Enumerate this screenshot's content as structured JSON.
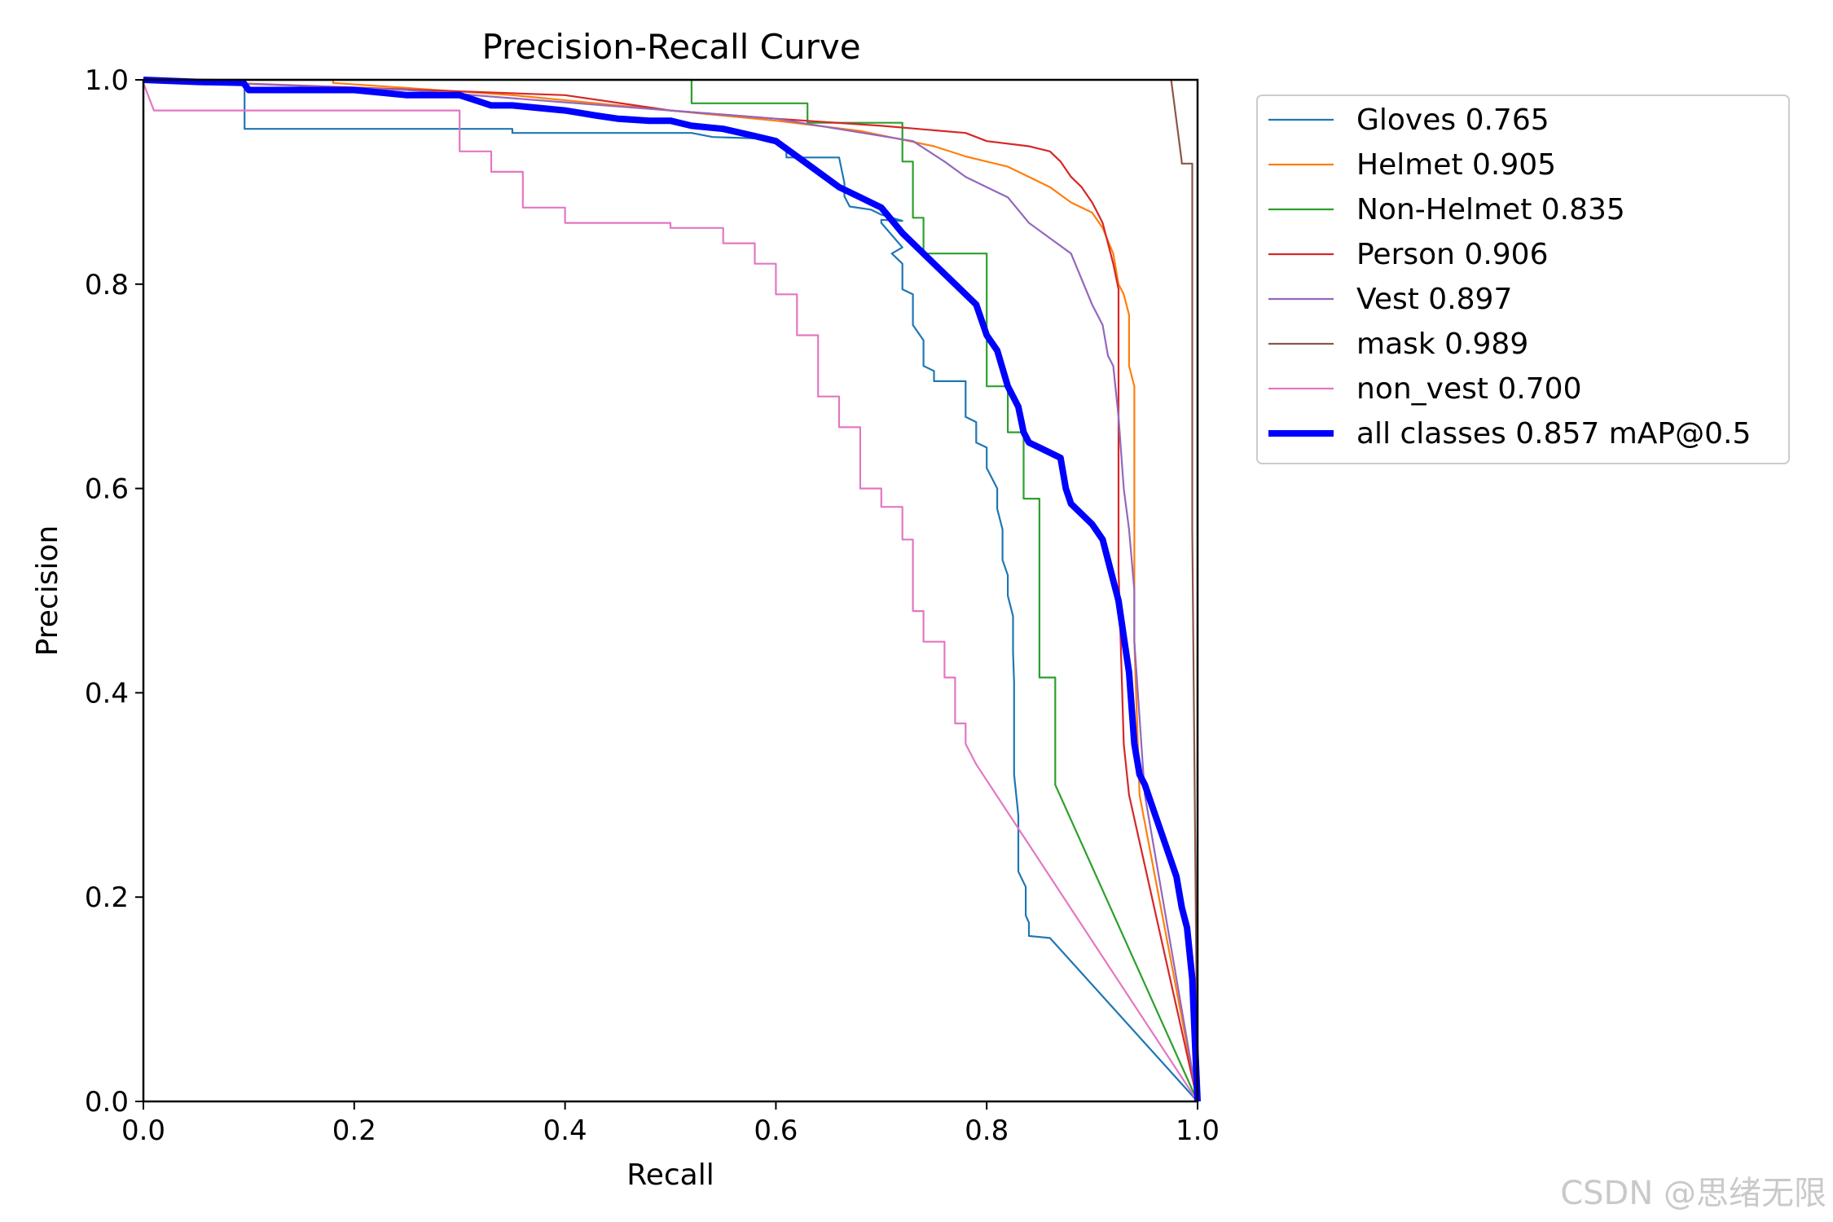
{
  "chart_data": {
    "type": "line",
    "title": "Precision-Recall Curve",
    "xlabel": "Recall",
    "ylabel": "Precision",
    "xlim": [
      0,
      1
    ],
    "ylim": [
      0,
      1
    ],
    "xticks": [
      "0.0",
      "0.2",
      "0.4",
      "0.6",
      "0.8",
      "1.0"
    ],
    "yticks": [
      "0.0",
      "0.2",
      "0.4",
      "0.6",
      "0.8",
      "1.0"
    ],
    "grid": false,
    "legend_position": "outside-right-top",
    "series": [
      {
        "name": "Gloves 0.765",
        "color": "#1f77b4",
        "x": [
          0,
          0.096,
          0.096,
          0.2,
          0.35,
          0.35,
          0.52,
          0.54,
          0.6,
          0.61,
          0.61,
          0.63,
          0.66,
          0.665,
          0.665,
          0.67,
          0.69,
          0.7,
          0.72,
          0.7,
          0.7,
          0.72,
          0.71,
          0.72,
          0.72,
          0.73,
          0.73,
          0.74,
          0.74,
          0.75,
          0.75,
          0.78,
          0.78,
          0.79,
          0.79,
          0.8,
          0.8,
          0.81,
          0.81,
          0.815,
          0.815,
          0.82,
          0.82,
          0.825,
          0.825,
          0.826,
          0.826,
          0.83,
          0.83,
          0.837,
          0.837,
          0.84,
          0.84,
          0.86,
          1.0
        ],
        "y": [
          1,
          1,
          0.952,
          0.952,
          0.952,
          0.948,
          0.948,
          0.944,
          0.942,
          0.933,
          0.924,
          0.924,
          0.924,
          0.899,
          0.886,
          0.876,
          0.873,
          0.868,
          0.862,
          0.863,
          0.86,
          0.836,
          0.83,
          0.82,
          0.795,
          0.79,
          0.76,
          0.745,
          0.72,
          0.715,
          0.705,
          0.705,
          0.67,
          0.665,
          0.645,
          0.64,
          0.62,
          0.6,
          0.58,
          0.56,
          0.53,
          0.515,
          0.495,
          0.475,
          0.44,
          0.41,
          0.32,
          0.28,
          0.225,
          0.21,
          0.182,
          0.175,
          0.162,
          0.16,
          0.0
        ]
      },
      {
        "name": "Helmet 0.905",
        "color": "#ff7f0e",
        "x": [
          0,
          0.18,
          0.18,
          0.35,
          0.5,
          0.6,
          0.68,
          0.75,
          0.78,
          0.8,
          0.82,
          0.84,
          0.86,
          0.88,
          0.9,
          0.91,
          0.92,
          0.925,
          0.93,
          0.935,
          0.935,
          0.94,
          0.94,
          0.945,
          1.0
        ],
        "y": [
          1,
          1,
          0.997,
          0.985,
          0.97,
          0.96,
          0.95,
          0.935,
          0.925,
          0.92,
          0.915,
          0.905,
          0.895,
          0.88,
          0.87,
          0.855,
          0.83,
          0.8,
          0.79,
          0.77,
          0.72,
          0.7,
          0.45,
          0.3,
          0.0
        ]
      },
      {
        "name": "Non-Helmet 0.835",
        "color": "#2ca02c",
        "x": [
          0,
          0.52,
          0.52,
          0.63,
          0.63,
          0.72,
          0.72,
          0.73,
          0.73,
          0.74,
          0.74,
          0.8,
          0.8,
          0.82,
          0.82,
          0.835,
          0.835,
          0.85,
          0.85,
          0.865,
          0.865,
          1.0
        ],
        "y": [
          1,
          1,
          0.977,
          0.977,
          0.958,
          0.958,
          0.92,
          0.92,
          0.865,
          0.865,
          0.83,
          0.83,
          0.7,
          0.7,
          0.655,
          0.655,
          0.59,
          0.59,
          0.415,
          0.415,
          0.31,
          0.0
        ]
      },
      {
        "name": "Person 0.906",
        "color": "#d62728",
        "x": [
          0,
          0.4,
          0.5,
          0.6,
          0.7,
          0.78,
          0.8,
          0.84,
          0.86,
          0.87,
          0.88,
          0.89,
          0.9,
          0.905,
          0.91,
          0.915,
          0.92,
          0.925,
          0.925,
          0.93,
          0.935,
          1.0
        ],
        "y": [
          1,
          0.985,
          0.97,
          0.962,
          0.955,
          0.948,
          0.94,
          0.935,
          0.93,
          0.92,
          0.905,
          0.895,
          0.88,
          0.87,
          0.86,
          0.84,
          0.82,
          0.795,
          0.52,
          0.35,
          0.3,
          0.0
        ]
      },
      {
        "name": "Vest 0.897",
        "color": "#9467bd",
        "x": [
          0,
          0.25,
          0.4,
          0.6,
          0.73,
          0.76,
          0.78,
          0.8,
          0.82,
          0.84,
          0.86,
          0.88,
          0.9,
          0.91,
          0.915,
          0.92,
          0.925,
          0.93,
          0.935,
          0.94,
          0.94,
          0.95,
          1.0
        ],
        "y": [
          1,
          0.99,
          0.978,
          0.962,
          0.94,
          0.92,
          0.905,
          0.895,
          0.885,
          0.86,
          0.845,
          0.83,
          0.78,
          0.76,
          0.73,
          0.72,
          0.67,
          0.6,
          0.56,
          0.5,
          0.45,
          0.3,
          0.0
        ]
      },
      {
        "name": "mask 0.989",
        "color": "#8c564b",
        "x": [
          0.975,
          0.975,
          0.985,
          0.985,
          0.995,
          0.995,
          1.0
        ],
        "y": [
          1,
          1,
          0.92,
          0.918,
          0.918,
          0.56,
          0.0
        ]
      },
      {
        "name": "non_vest 0.700",
        "color": "#e377c2",
        "x": [
          0,
          0.01,
          0.01,
          0.3,
          0.3,
          0.33,
          0.33,
          0.36,
          0.36,
          0.4,
          0.4,
          0.5,
          0.5,
          0.55,
          0.55,
          0.58,
          0.58,
          0.6,
          0.6,
          0.62,
          0.62,
          0.64,
          0.64,
          0.66,
          0.66,
          0.68,
          0.68,
          0.7,
          0.7,
          0.72,
          0.72,
          0.73,
          0.73,
          0.74,
          0.74,
          0.76,
          0.76,
          0.77,
          0.77,
          0.78,
          0.78,
          0.79,
          1.0
        ],
        "y": [
          0.997,
          0.97,
          0.97,
          0.97,
          0.93,
          0.93,
          0.91,
          0.91,
          0.875,
          0.875,
          0.86,
          0.86,
          0.855,
          0.855,
          0.84,
          0.84,
          0.82,
          0.82,
          0.79,
          0.79,
          0.75,
          0.75,
          0.69,
          0.69,
          0.66,
          0.66,
          0.6,
          0.6,
          0.582,
          0.582,
          0.55,
          0.55,
          0.48,
          0.48,
          0.45,
          0.45,
          0.415,
          0.415,
          0.37,
          0.37,
          0.35,
          0.33,
          0.0
        ]
      },
      {
        "name": "all classes 0.857 mAP@0.5",
        "color": "#0000ff",
        "bold": true,
        "x": [
          0,
          0.05,
          0.095,
          0.1,
          0.2,
          0.25,
          0.3,
          0.33,
          0.35,
          0.38,
          0.4,
          0.43,
          0.45,
          0.48,
          0.5,
          0.52,
          0.55,
          0.58,
          0.6,
          0.62,
          0.64,
          0.66,
          0.68,
          0.7,
          0.72,
          0.73,
          0.74,
          0.75,
          0.77,
          0.79,
          0.8,
          0.81,
          0.82,
          0.83,
          0.835,
          0.84,
          0.85,
          0.87,
          0.875,
          0.88,
          0.9,
          0.91,
          0.915,
          0.92,
          0.925,
          0.93,
          0.935,
          0.94,
          0.945,
          0.95,
          0.96,
          0.97,
          0.98,
          0.985,
          0.99,
          0.995,
          1.0
        ],
        "y": [
          1,
          0.998,
          0.997,
          0.99,
          0.99,
          0.985,
          0.985,
          0.975,
          0.975,
          0.972,
          0.97,
          0.965,
          0.962,
          0.96,
          0.96,
          0.955,
          0.952,
          0.945,
          0.94,
          0.925,
          0.91,
          0.895,
          0.885,
          0.875,
          0.85,
          0.84,
          0.83,
          0.82,
          0.8,
          0.78,
          0.75,
          0.735,
          0.7,
          0.68,
          0.655,
          0.645,
          0.64,
          0.63,
          0.6,
          0.585,
          0.565,
          0.55,
          0.53,
          0.51,
          0.49,
          0.455,
          0.42,
          0.35,
          0.32,
          0.31,
          0.28,
          0.25,
          0.22,
          0.19,
          0.17,
          0.12,
          0.0
        ]
      }
    ]
  },
  "watermark": "CSDN @思绪无限"
}
